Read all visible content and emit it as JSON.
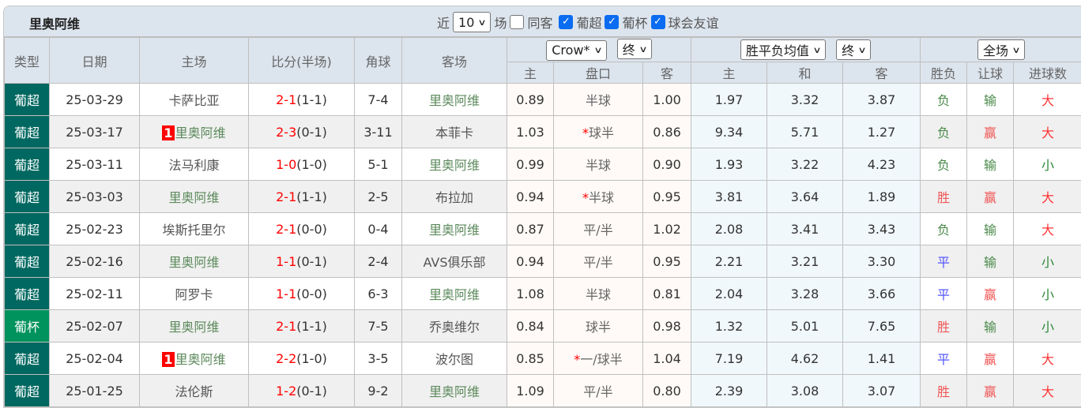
{
  "title": "里奥阿维",
  "filters": {
    "near_label": "近",
    "count": "10",
    "unit_label": "场",
    "same_away": {
      "label": "同客",
      "checked": false
    },
    "leagues": [
      {
        "label": "葡超",
        "checked": true
      },
      {
        "label": "葡杯",
        "checked": true
      },
      {
        "label": "球会友谊",
        "checked": true
      }
    ]
  },
  "header": {
    "type": "类型",
    "date": "日期",
    "home": "主场",
    "score": "比分(半场)",
    "corner": "角球",
    "away": "客场",
    "company_select": "Crow*",
    "handicap_time_select": "终",
    "odds_type_select": "胜平负均值",
    "odds_time_select": "终",
    "period_select": "全场",
    "sub": {
      "h_home": "主",
      "h_line": "盘口",
      "h_away": "客",
      "o_home": "主",
      "o_draw": "和",
      "o_away": "客",
      "result": "胜负",
      "handicap": "让球",
      "goals": "进球数"
    }
  },
  "colors": {
    "type_league": "#006860",
    "type_cup": "#00935e",
    "score": "#ff0000",
    "rio_ave": "#5c8a5c",
    "win": "#f05555",
    "lose": "#4a8a4a",
    "draw": "#5555ff"
  },
  "rows": [
    {
      "type": "葡超",
      "date": "25-03-29",
      "home": "卡萨比亚",
      "home_rank": "",
      "score": "2-1",
      "half": "(1-1)",
      "corner": "7-4",
      "away": "里奥阿维",
      "h_home": "0.89",
      "h_star": "",
      "h_line": "半球",
      "h_away": "1.00",
      "o_home": "1.97",
      "o_draw": "3.32",
      "o_away": "3.87",
      "result": "负",
      "handicap": "输",
      "goals": "大"
    },
    {
      "type": "葡超",
      "date": "25-03-17",
      "home": "里奥阿维",
      "home_rank": "1",
      "score": "2-3",
      "half": "(0-1)",
      "corner": "3-11",
      "away": "本菲卡",
      "h_home": "1.03",
      "h_star": "*",
      "h_line": "球半",
      "h_away": "0.86",
      "o_home": "9.34",
      "o_draw": "5.71",
      "o_away": "1.27",
      "result": "负",
      "handicap": "赢",
      "goals": "大"
    },
    {
      "type": "葡超",
      "date": "25-03-11",
      "home": "法马利康",
      "home_rank": "",
      "score": "1-0",
      "half": "(1-0)",
      "corner": "5-1",
      "away": "里奥阿维",
      "h_home": "0.99",
      "h_star": "",
      "h_line": "半球",
      "h_away": "0.90",
      "o_home": "1.93",
      "o_draw": "3.22",
      "o_away": "4.23",
      "result": "负",
      "handicap": "输",
      "goals": "小"
    },
    {
      "type": "葡超",
      "date": "25-03-03",
      "home": "里奥阿维",
      "home_rank": "",
      "score": "2-1",
      "half": "(1-1)",
      "corner": "2-5",
      "away": "布拉加",
      "h_home": "0.94",
      "h_star": "*",
      "h_line": "半球",
      "h_away": "0.95",
      "o_home": "3.81",
      "o_draw": "3.64",
      "o_away": "1.89",
      "result": "胜",
      "handicap": "赢",
      "goals": "大"
    },
    {
      "type": "葡超",
      "date": "25-02-23",
      "home": "埃斯托里尔",
      "home_rank": "",
      "score": "2-1",
      "half": "(0-0)",
      "corner": "0-4",
      "away": "里奥阿维",
      "h_home": "0.87",
      "h_star": "",
      "h_line": "平/半",
      "h_away": "1.02",
      "o_home": "2.08",
      "o_draw": "3.41",
      "o_away": "3.43",
      "result": "负",
      "handicap": "输",
      "goals": "大"
    },
    {
      "type": "葡超",
      "date": "25-02-16",
      "home": "里奥阿维",
      "home_rank": "",
      "score": "1-1",
      "half": "(0-1)",
      "corner": "2-4",
      "away": "AVS俱乐部",
      "h_home": "0.94",
      "h_star": "",
      "h_line": "平/半",
      "h_away": "0.95",
      "o_home": "2.21",
      "o_draw": "3.21",
      "o_away": "3.30",
      "result": "平",
      "handicap": "输",
      "goals": "小"
    },
    {
      "type": "葡超",
      "date": "25-02-11",
      "home": "阿罗卡",
      "home_rank": "",
      "score": "1-1",
      "half": "(0-0)",
      "corner": "6-3",
      "away": "里奥阿维",
      "h_home": "1.08",
      "h_star": "",
      "h_line": "半球",
      "h_away": "0.81",
      "o_home": "2.04",
      "o_draw": "3.28",
      "o_away": "3.66",
      "result": "平",
      "handicap": "赢",
      "goals": "小"
    },
    {
      "type": "葡杯",
      "date": "25-02-07",
      "home": "里奥阿维",
      "home_rank": "",
      "score": "2-1",
      "half": "(1-1)",
      "corner": "7-5",
      "away": "乔奥维尔",
      "h_home": "0.84",
      "h_star": "",
      "h_line": "球半",
      "h_away": "0.98",
      "o_home": "1.32",
      "o_draw": "5.01",
      "o_away": "7.65",
      "result": "胜",
      "handicap": "输",
      "goals": "小"
    },
    {
      "type": "葡超",
      "date": "25-02-04",
      "home": "里奥阿维",
      "home_rank": "1",
      "score": "2-2",
      "half": "(1-0)",
      "corner": "3-5",
      "away": "波尔图",
      "h_home": "0.85",
      "h_star": "*",
      "h_line": "一/球半",
      "h_away": "1.04",
      "o_home": "7.19",
      "o_draw": "4.62",
      "o_away": "1.41",
      "result": "平",
      "handicap": "赢",
      "goals": "大"
    },
    {
      "type": "葡超",
      "date": "25-01-25",
      "home": "法伦斯",
      "home_rank": "",
      "score": "1-2",
      "half": "(0-1)",
      "corner": "9-2",
      "away": "里奥阿维",
      "h_home": "1.09",
      "h_star": "",
      "h_line": "平/半",
      "h_away": "0.80",
      "o_home": "2.39",
      "o_draw": "3.08",
      "o_away": "3.07",
      "result": "胜",
      "handicap": "赢",
      "goals": "大"
    }
  ]
}
